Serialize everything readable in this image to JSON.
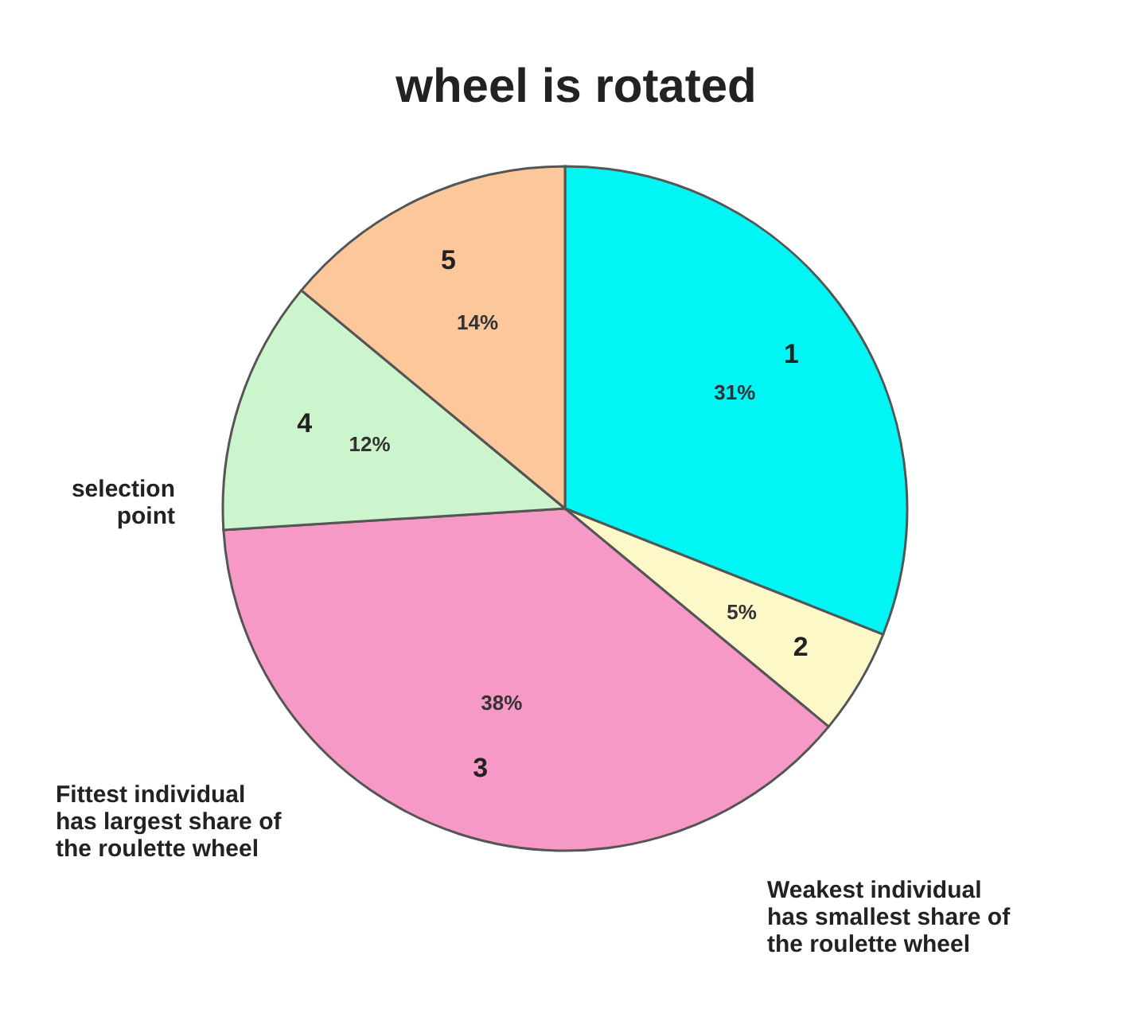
{
  "chart_data": {
    "type": "pie",
    "title": "wheel is rotated",
    "categories": [
      "1",
      "2",
      "3",
      "4",
      "5"
    ],
    "values": [
      31,
      5,
      38,
      12,
      14
    ],
    "value_labels": [
      "31%",
      "5%",
      "38%",
      "12%",
      "14%"
    ],
    "colors": [
      "#00f5f5",
      "#fdf8c8",
      "#f799c6",
      "#cdf5cd",
      "#fcc89b"
    ],
    "annotations": [
      "selection\npoint",
      "Fittest individual\nhas largest share of\nthe roulette wheel",
      "Weakest individual\nhas smallest share of\nthe roulette wheel"
    ]
  }
}
